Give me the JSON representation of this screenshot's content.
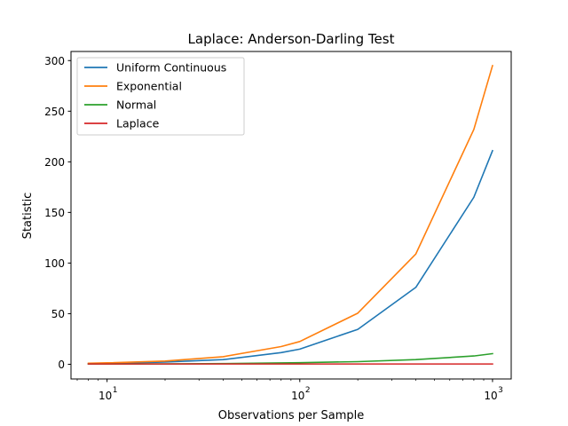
{
  "chart_data": {
    "type": "line",
    "title": "Laplace: Anderson-Darling Test",
    "xlabel": "Observations per Sample",
    "ylabel": "Statistic",
    "xscale": "log",
    "xlim": [
      6.5,
      1250
    ],
    "ylim": [
      -14.5,
      309
    ],
    "grid": false,
    "legend_position": "top-left",
    "x": [
      8,
      10,
      20,
      40,
      80,
      100,
      200,
      400,
      800,
      1000
    ],
    "yticks": [
      0,
      50,
      100,
      150,
      200,
      250,
      300
    ],
    "yticklabels": [
      "0",
      "50",
      "100",
      "150",
      "200",
      "250",
      "300"
    ],
    "xticks": [
      10,
      100,
      1000
    ],
    "xticklabels": [
      "10",
      "10",
      "10"
    ],
    "xtickexponents": [
      "1",
      "2",
      "3"
    ],
    "series": [
      {
        "name": "Uniform Continuous",
        "color": "#1f77b4",
        "values": [
          0.5,
          0.8,
          2.2,
          4.6,
          11.5,
          15,
          34.5,
          76,
          165,
          211
        ]
      },
      {
        "name": "Exponential",
        "color": "#ff7f0e",
        "values": [
          1.0,
          1.4,
          3.2,
          7.5,
          17.5,
          22.5,
          50.5,
          109,
          232,
          295
        ]
      },
      {
        "name": "Normal",
        "color": "#2ca02c",
        "values": [
          0.3,
          0.3,
          0.4,
          0.7,
          1.3,
          1.6,
          2.6,
          4.6,
          8.2,
          10.5
        ]
      },
      {
        "name": "Laplace",
        "color": "#d62728",
        "values": [
          0.3,
          0.3,
          0.3,
          0.3,
          0.3,
          0.3,
          0.3,
          0.3,
          0.3,
          0.3
        ]
      }
    ]
  }
}
